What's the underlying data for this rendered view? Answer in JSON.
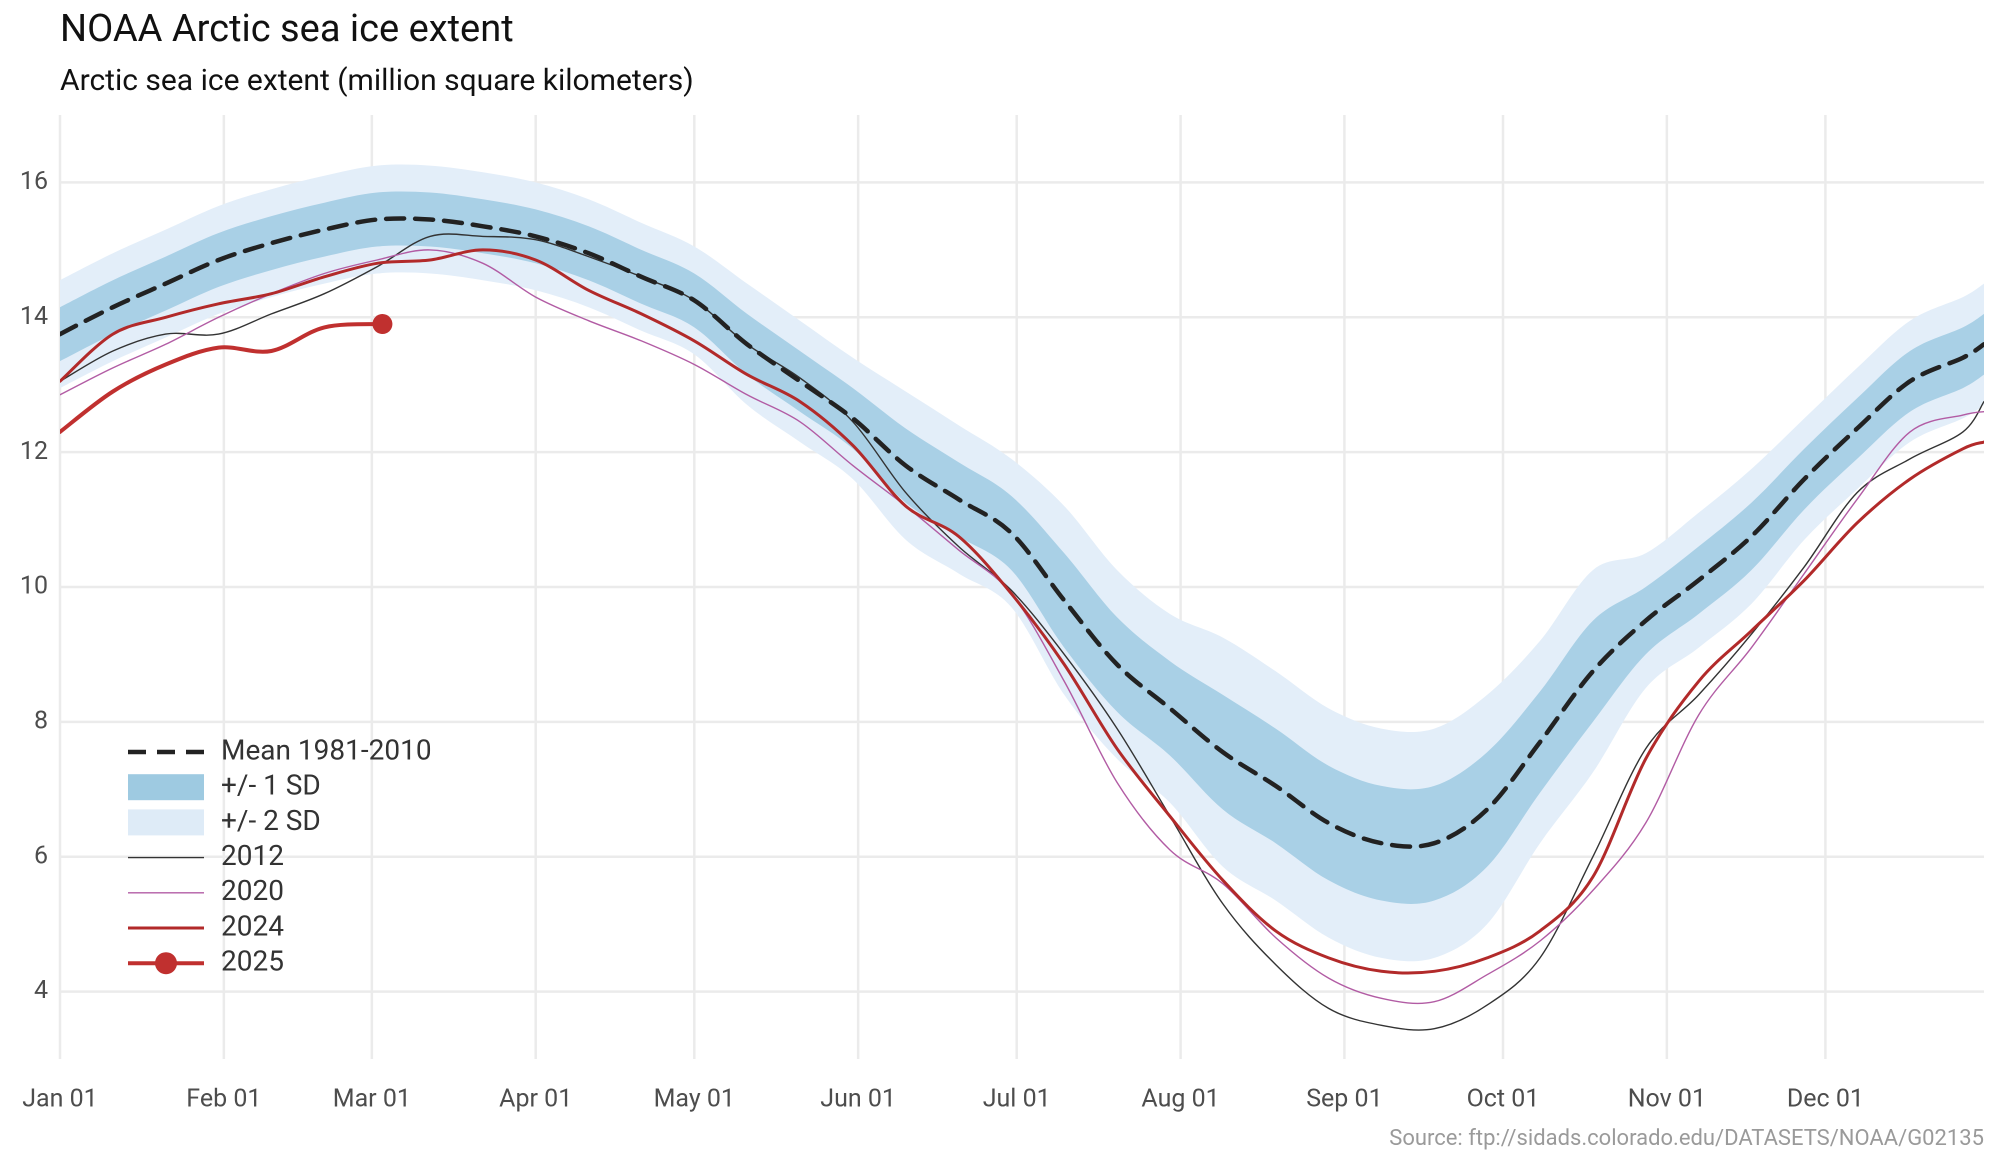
{
  "chart_data": {
    "type": "line",
    "title": "NOAA Arctic sea ice extent",
    "subtitle": "Arctic sea ice extent (million square kilometers)",
    "source": "Source: ftp://sidads.colorado.edu/DATASETS/NOAA/G02135",
    "x": [
      1,
      11,
      21,
      31,
      41,
      51,
      61,
      71,
      81,
      91,
      101,
      111,
      121,
      131,
      141,
      151,
      161,
      171,
      181,
      191,
      201,
      211,
      221,
      231,
      241,
      251,
      261,
      271,
      281,
      291,
      301,
      311,
      321,
      331,
      341,
      351,
      361,
      365
    ],
    "xlim": [
      1,
      365
    ],
    "xticks": [
      {
        "value": 1,
        "label": "Jan 01"
      },
      {
        "value": 32,
        "label": "Feb 01"
      },
      {
        "value": 60,
        "label": "Mar 01"
      },
      {
        "value": 91,
        "label": "Apr 01"
      },
      {
        "value": 121,
        "label": "May 01"
      },
      {
        "value": 152,
        "label": "Jun 01"
      },
      {
        "value": 182,
        "label": "Jul 01"
      },
      {
        "value": 213,
        "label": "Aug 01"
      },
      {
        "value": 244,
        "label": "Sep 01"
      },
      {
        "value": 274,
        "label": "Oct 01"
      },
      {
        "value": 305,
        "label": "Nov 01"
      },
      {
        "value": 335,
        "label": "Dec 01"
      }
    ],
    "ylim": [
      3,
      17
    ],
    "yticks": [
      4,
      6,
      8,
      10,
      12,
      14,
      16
    ],
    "grid": true,
    "legend": "bottom-left",
    "series": [
      {
        "name": "Mean 1981-2010",
        "color": "#222222",
        "style": "dashed",
        "values": [
          13.75,
          14.15,
          14.5,
          14.85,
          15.1,
          15.3,
          15.45,
          15.45,
          15.35,
          15.2,
          14.95,
          14.6,
          14.25,
          13.6,
          13.05,
          12.5,
          11.8,
          11.3,
          10.8,
          9.8,
          8.85,
          8.2,
          7.55,
          7.05,
          6.5,
          6.2,
          6.2,
          6.7,
          7.7,
          8.75,
          9.5,
          10.1,
          10.75,
          11.6,
          12.35,
          13.05,
          13.4,
          13.6
        ]
      },
      {
        "name": "+/- 1 SD",
        "color": "#a9d0e6",
        "style": "band",
        "lower": [
          13.35,
          13.75,
          14.1,
          14.45,
          14.7,
          14.9,
          15.05,
          15.05,
          14.95,
          14.8,
          14.55,
          14.2,
          13.85,
          13.15,
          12.6,
          12.05,
          11.25,
          10.75,
          10.25,
          9.1,
          8.15,
          7.5,
          6.7,
          6.2,
          5.65,
          5.35,
          5.35,
          5.85,
          6.95,
          8.0,
          9.0,
          9.6,
          10.25,
          11.15,
          11.9,
          12.6,
          12.95,
          13.15
        ],
        "upper": [
          14.15,
          14.55,
          14.9,
          15.25,
          15.5,
          15.7,
          15.85,
          15.85,
          15.75,
          15.6,
          15.35,
          15.0,
          14.65,
          14.05,
          13.5,
          12.95,
          12.35,
          11.85,
          11.35,
          10.5,
          9.55,
          8.9,
          8.4,
          7.9,
          7.35,
          7.05,
          7.05,
          7.55,
          8.45,
          9.5,
          10.0,
          10.6,
          11.25,
          12.05,
          12.8,
          13.5,
          13.85,
          14.05
        ]
      },
      {
        "name": "+/- 2 SD",
        "color": "#e3eef9",
        "style": "band",
        "lower": [
          12.95,
          13.35,
          13.7,
          14.05,
          14.3,
          14.5,
          14.65,
          14.65,
          14.55,
          14.4,
          14.15,
          13.8,
          13.45,
          12.7,
          12.15,
          11.6,
          10.7,
          10.2,
          9.7,
          8.4,
          7.45,
          6.8,
          5.85,
          5.35,
          4.8,
          4.5,
          4.5,
          5.0,
          6.2,
          7.25,
          8.5,
          9.1,
          9.75,
          10.7,
          11.45,
          12.15,
          12.5,
          12.7
        ],
        "upper": [
          14.55,
          14.95,
          15.3,
          15.65,
          15.9,
          16.1,
          16.25,
          16.25,
          16.15,
          16.0,
          15.75,
          15.4,
          15.05,
          14.5,
          13.95,
          13.4,
          12.9,
          12.4,
          11.9,
          11.2,
          10.25,
          9.6,
          9.25,
          8.75,
          8.2,
          7.9,
          7.9,
          8.4,
          9.2,
          10.25,
          10.5,
          11.1,
          11.75,
          12.5,
          13.25,
          13.95,
          14.3,
          14.5
        ]
      },
      {
        "name": "2012",
        "color": "#333333",
        "style": "thin",
        "values": [
          13.05,
          13.5,
          13.75,
          13.75,
          14.05,
          14.35,
          14.75,
          15.2,
          15.2,
          15.15,
          14.9,
          14.6,
          14.25,
          13.6,
          13.1,
          12.45,
          11.4,
          10.6,
          9.95,
          9.0,
          7.9,
          6.6,
          5.3,
          4.4,
          3.75,
          3.5,
          3.45,
          3.8,
          4.5,
          6.0,
          7.6,
          8.4,
          9.3,
          10.3,
          11.4,
          11.9,
          12.3,
          12.75
        ]
      },
      {
        "name": "2020",
        "color": "#b25ca4",
        "style": "thin",
        "values": [
          12.85,
          13.25,
          13.6,
          14.0,
          14.35,
          14.65,
          14.85,
          15.0,
          14.8,
          14.3,
          13.95,
          13.65,
          13.3,
          12.85,
          12.45,
          11.8,
          11.2,
          10.55,
          9.9,
          8.6,
          7.1,
          6.1,
          5.6,
          4.8,
          4.2,
          3.9,
          3.85,
          4.25,
          4.75,
          5.5,
          6.5,
          8.1,
          9.1,
          10.2,
          11.3,
          12.3,
          12.55,
          12.6
        ]
      },
      {
        "name": "2024",
        "color": "#b22a2a",
        "style": "line",
        "values": [
          13.05,
          13.75,
          14.0,
          14.2,
          14.35,
          14.6,
          14.8,
          14.85,
          15.0,
          14.85,
          14.4,
          14.05,
          13.65,
          13.15,
          12.75,
          12.1,
          11.2,
          10.75,
          9.9,
          8.85,
          7.6,
          6.6,
          5.65,
          4.9,
          4.5,
          4.3,
          4.3,
          4.5,
          4.9,
          5.7,
          7.45,
          8.6,
          9.35,
          10.1,
          10.95,
          11.6,
          12.05,
          12.15
        ]
      },
      {
        "name": "2025",
        "color": "#c0302f",
        "style": "line-marker",
        "x": [
          1,
          11,
          21,
          31,
          41,
          51,
          62
        ],
        "values": [
          12.3,
          12.9,
          13.3,
          13.55,
          13.5,
          13.85,
          13.9
        ]
      }
    ]
  }
}
